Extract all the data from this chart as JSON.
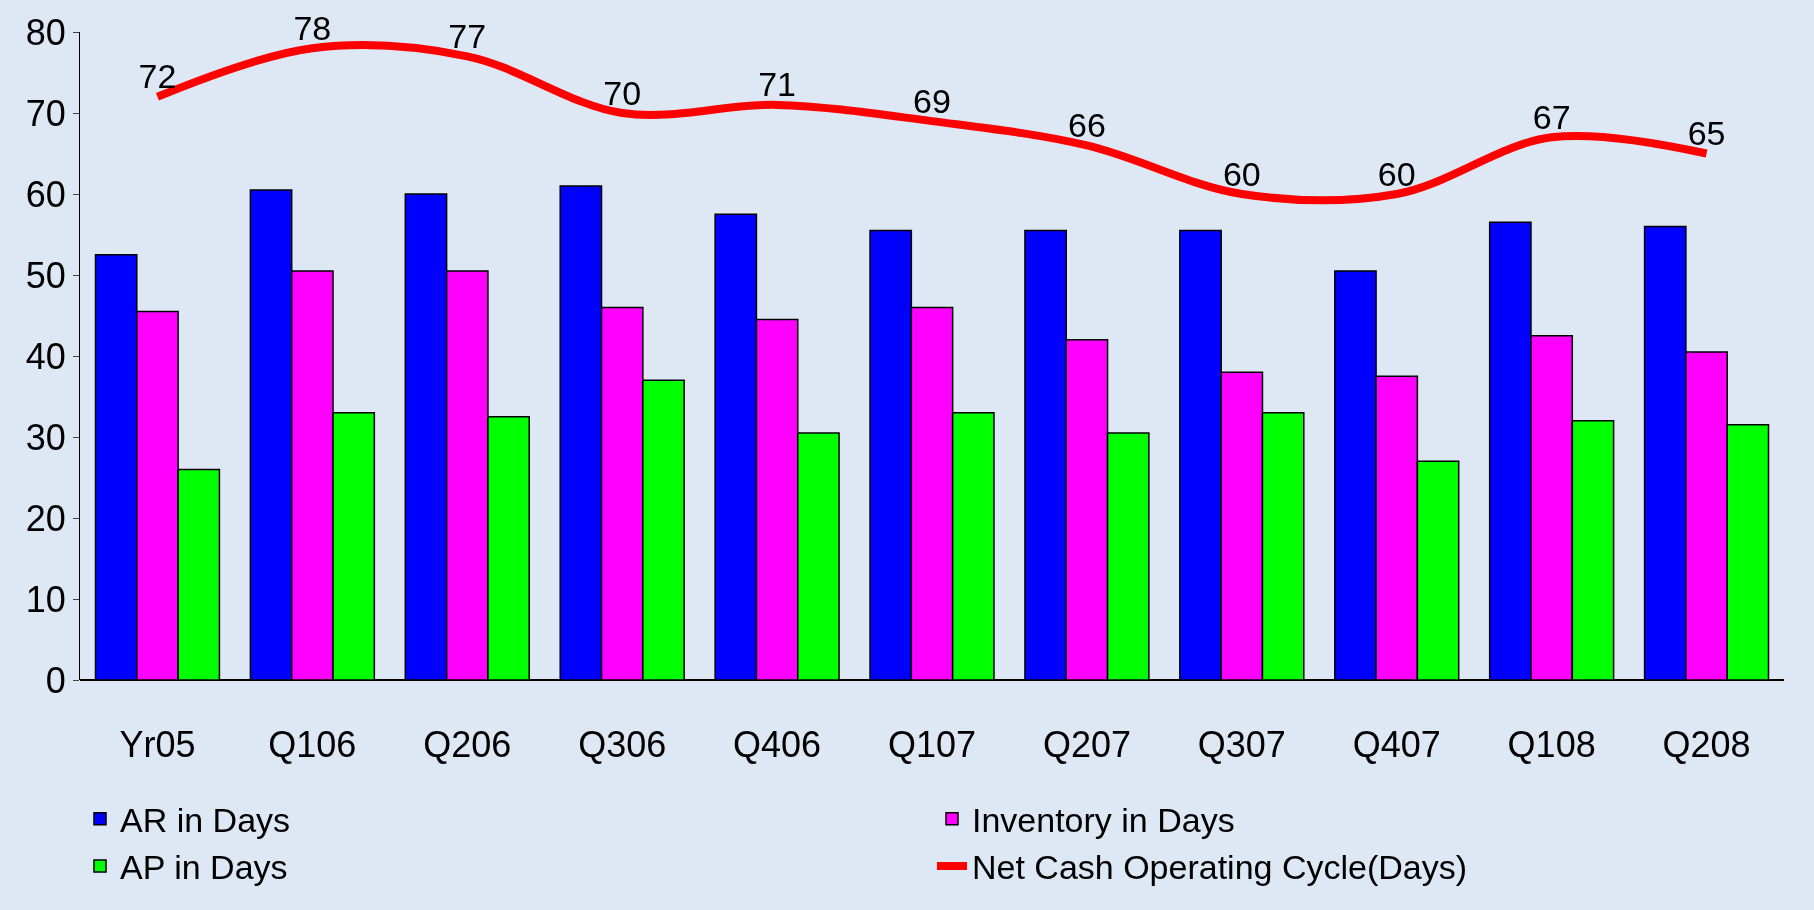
{
  "chart_data": {
    "type": "bar",
    "categories": [
      "Yr05",
      "Q106",
      "Q206",
      "Q306",
      "Q406",
      "Q107",
      "Q207",
      "Q307",
      "Q407",
      "Q108",
      "Q208"
    ],
    "series": [
      {
        "name": "AR in Days",
        "color": "#0000ff",
        "values": [
          52.5,
          60.5,
          60,
          61,
          57.5,
          55.5,
          55.5,
          55.5,
          50.5,
          56.5,
          56
        ]
      },
      {
        "name": "Inventory in Days",
        "color": "#ff00ff",
        "values": [
          45.5,
          50.5,
          50.5,
          46,
          44.5,
          46,
          42,
          38,
          37.5,
          42.5,
          40.5
        ]
      },
      {
        "name": "AP in Days",
        "color": "#00ff00",
        "values": [
          26,
          33,
          32.5,
          37,
          30.5,
          33,
          30.5,
          33,
          27,
          32,
          31.5
        ]
      },
      {
        "name": "Net Cash Operating Cycle(Days)",
        "color": "#ff0000",
        "type": "line",
        "data_labels": true,
        "values": [
          72,
          78,
          77,
          70,
          71,
          69,
          66,
          60,
          60,
          67,
          65
        ]
      }
    ],
    "ylim": [
      0,
      80
    ],
    "yticks": [
      0,
      10,
      20,
      30,
      40,
      50,
      60,
      70,
      80
    ],
    "grid": false,
    "legend": "bottom",
    "marker": "none",
    "line_style": "solid"
  }
}
